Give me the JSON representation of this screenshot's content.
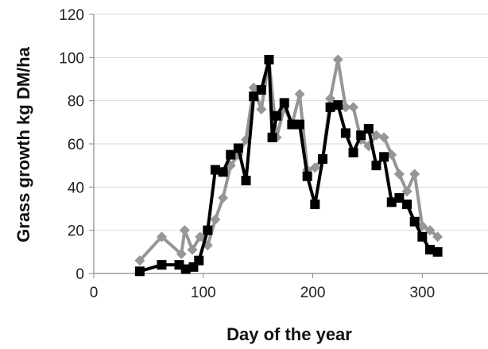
{
  "chart_data": {
    "type": "line",
    "title": "",
    "xlabel": "Day of the year",
    "ylabel": "Grass growth kg DM/ha",
    "xlim": [
      0,
      360
    ],
    "ylim": [
      0,
      120
    ],
    "xticks": [
      0,
      100,
      200,
      300
    ],
    "yticks": [
      0,
      20,
      40,
      60,
      80,
      100,
      120
    ],
    "grid": "horizontal",
    "legend": "none",
    "series": [
      {
        "color": "#969696",
        "marker": "diamond",
        "x": [
          42,
          62,
          80,
          83,
          90,
          97,
          104,
          111,
          118,
          125,
          132,
          139,
          146,
          153,
          160,
          167,
          174,
          181,
          188,
          195,
          202,
          209,
          216,
          223,
          230,
          237,
          244,
          251,
          258,
          265,
          272,
          279,
          286,
          293,
          300,
          307,
          314
        ],
        "y": [
          6,
          17,
          9,
          20,
          11,
          17,
          13,
          25,
          35,
          50,
          55,
          62,
          86,
          76,
          99,
          63,
          77,
          69,
          83,
          48,
          49,
          53,
          81,
          99,
          77,
          77,
          62,
          59,
          64,
          63,
          55,
          46,
          38,
          46,
          22,
          20,
          17
        ]
      },
      {
        "color": "#000000",
        "marker": "square",
        "x": [
          42,
          62,
          78,
          84,
          91,
          96,
          104,
          111,
          118,
          125,
          132,
          139,
          146,
          153,
          160,
          163,
          167,
          174,
          181,
          188,
          195,
          202,
          209,
          216,
          223,
          230,
          237,
          244,
          251,
          258,
          265,
          272,
          279,
          286,
          293,
          300,
          307,
          314
        ],
        "y": [
          1,
          4,
          4,
          2,
          3,
          6,
          20,
          48,
          47,
          55,
          58,
          43,
          82,
          85,
          99,
          63,
          73,
          79,
          69,
          69,
          45,
          32,
          53,
          77,
          78,
          65,
          56,
          64,
          67,
          50,
          54,
          33,
          35,
          32,
          24,
          17,
          11,
          10
        ]
      }
    ]
  }
}
